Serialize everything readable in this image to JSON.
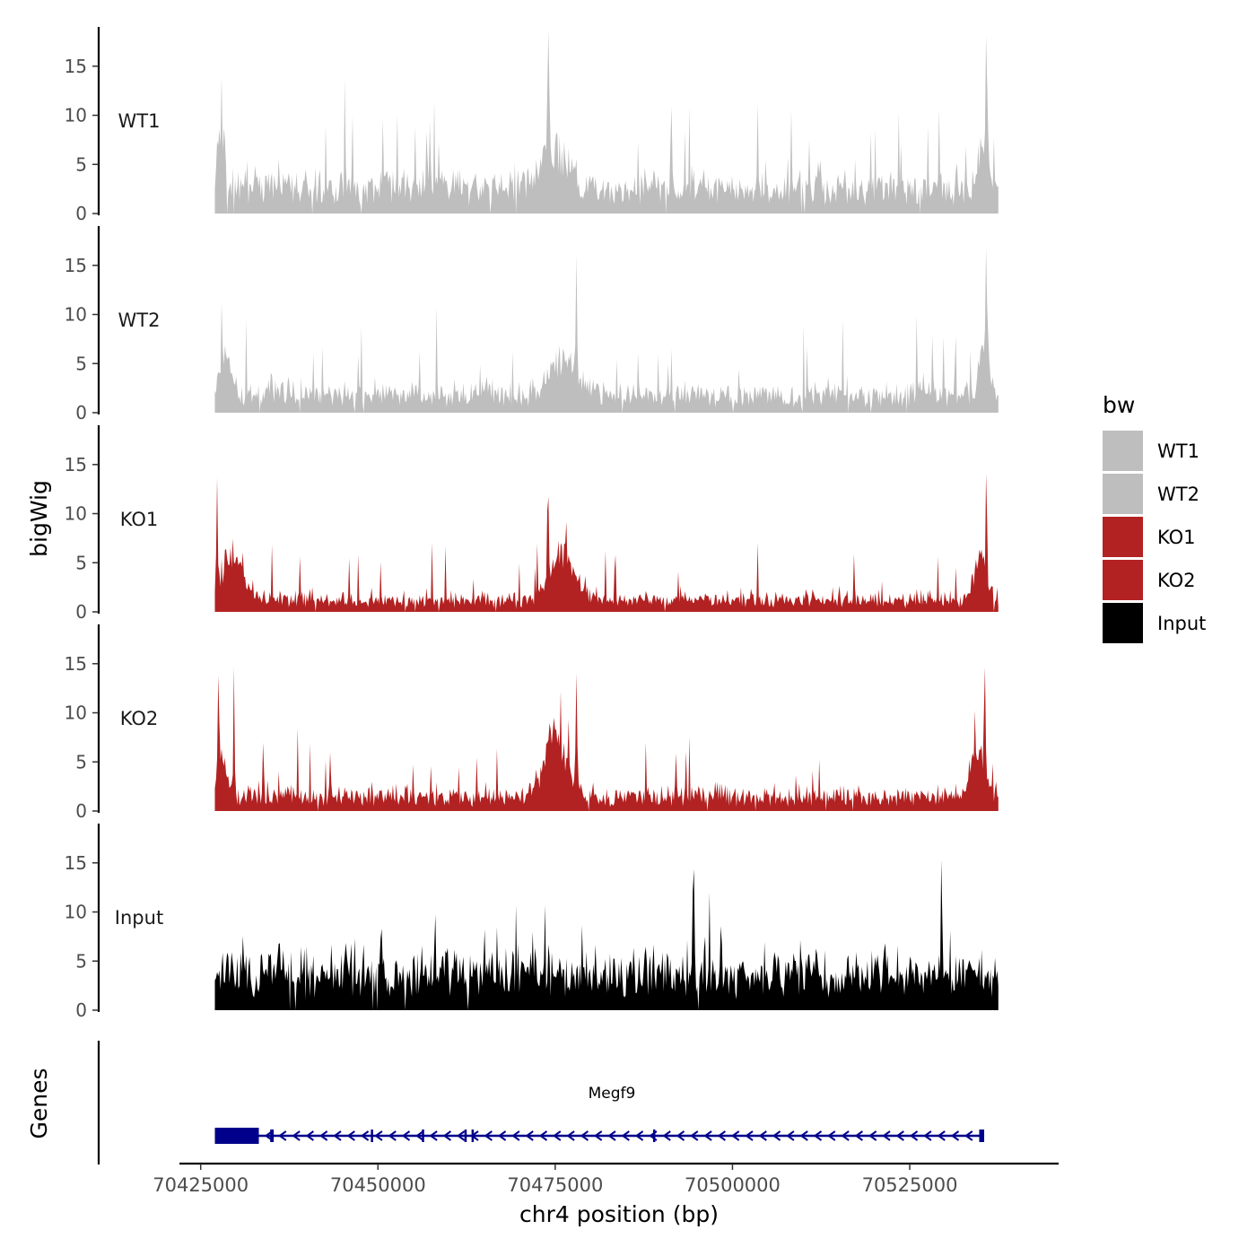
{
  "chart_data": {
    "type": "area",
    "title": "",
    "xlabel": "chr4 position (bp)",
    "ylabel": "bigWig",
    "genes_label": "Genes",
    "xlim": [
      70422000,
      70546000
    ],
    "data_xrange": [
      70427000,
      70537500
    ],
    "xticks": [
      70425000,
      70450000,
      70475000,
      70500000,
      70525000
    ],
    "xtick_labels": [
      "70425000",
      "70450000",
      "70475000",
      "70500000",
      "70525000"
    ],
    "ylim": [
      0,
      19
    ],
    "yticks": [
      0,
      5,
      10,
      15
    ],
    "ytick_labels": [
      "0",
      "5",
      "10",
      "15"
    ],
    "legend": {
      "title": "bw",
      "position": "right",
      "entries": [
        {
          "label": "WT1",
          "color": "#BEBEBE"
        },
        {
          "label": "WT2",
          "color": "#BEBEBE"
        },
        {
          "label": "KO1",
          "color": "#B22222"
        },
        {
          "label": "KO2",
          "color": "#B22222"
        },
        {
          "label": "Input",
          "color": "#000000"
        }
      ]
    },
    "series": [
      {
        "name": "WT1",
        "color": "#BEBEBE",
        "base": 3,
        "noise": 2.5,
        "spike_rate": 0.05,
        "spike_max": 10,
        "seed": 11,
        "peaks": [
          {
            "x": 70428000,
            "width": 700,
            "height": 8
          },
          {
            "x": 70475000,
            "width": 2500,
            "height": 5
          },
          {
            "x": 70474000,
            "width": 150,
            "height": 15.5
          },
          {
            "x": 70535500,
            "width": 900,
            "height": 7
          },
          {
            "x": 70535800,
            "width": 120,
            "height": 17.8
          }
        ]
      },
      {
        "name": "WT2",
        "color": "#BEBEBE",
        "base": 2,
        "noise": 2,
        "spike_rate": 0.04,
        "spike_max": 8,
        "seed": 23,
        "peaks": [
          {
            "x": 70428500,
            "width": 1200,
            "height": 5
          },
          {
            "x": 70476000,
            "width": 2500,
            "height": 5
          },
          {
            "x": 70478000,
            "width": 150,
            "height": 13.5
          },
          {
            "x": 70535500,
            "width": 900,
            "height": 7
          },
          {
            "x": 70535800,
            "width": 120,
            "height": 15
          }
        ]
      },
      {
        "name": "KO1",
        "color": "#B22222",
        "base": 1.2,
        "noise": 1.6,
        "spike_rate": 0.04,
        "spike_max": 6,
        "seed": 37,
        "peaks": [
          {
            "x": 70429500,
            "width": 2200,
            "height": 6
          },
          {
            "x": 70427300,
            "width": 120,
            "height": 13.5
          },
          {
            "x": 70476000,
            "width": 2500,
            "height": 6
          },
          {
            "x": 70474000,
            "width": 150,
            "height": 13.5
          },
          {
            "x": 70535000,
            "width": 1200,
            "height": 6
          },
          {
            "x": 70535800,
            "width": 120,
            "height": 17.8
          }
        ]
      },
      {
        "name": "KO2",
        "color": "#B22222",
        "base": 1.5,
        "noise": 1.8,
        "spike_rate": 0.05,
        "spike_max": 7,
        "seed": 53,
        "peaks": [
          {
            "x": 70428000,
            "width": 1000,
            "height": 5
          },
          {
            "x": 70427500,
            "width": 120,
            "height": 16.8
          },
          {
            "x": 70429700,
            "width": 120,
            "height": 14
          },
          {
            "x": 70475000,
            "width": 2200,
            "height": 8
          },
          {
            "x": 70478000,
            "width": 150,
            "height": 13.5
          },
          {
            "x": 70534500,
            "width": 1500,
            "height": 6
          },
          {
            "x": 70535600,
            "width": 120,
            "height": 14.8
          }
        ]
      },
      {
        "name": "Input",
        "color": "#000000",
        "base": 4,
        "noise": 3.5,
        "spike_rate": 0.06,
        "spike_max": 7,
        "seed": 71,
        "peaks": [
          {
            "x": 70494500,
            "width": 120,
            "height": 13
          },
          {
            "x": 70529500,
            "width": 120,
            "height": 13
          },
          {
            "x": 70450500,
            "width": 120,
            "height": 12
          }
        ]
      }
    ],
    "gene_track": {
      "name": "Megf9",
      "color": "#00008B",
      "strand": "-",
      "start": 70427000,
      "end": 70535500,
      "exons": [
        [
          70427000,
          70433200
        ],
        [
          70434800,
          70435300
        ],
        [
          70449000,
          70449200
        ],
        [
          70456200,
          70456400
        ],
        [
          70462200,
          70462400
        ],
        [
          70463200,
          70463400
        ],
        [
          70488800,
          70489000
        ],
        [
          70534800,
          70535500
        ]
      ]
    }
  }
}
